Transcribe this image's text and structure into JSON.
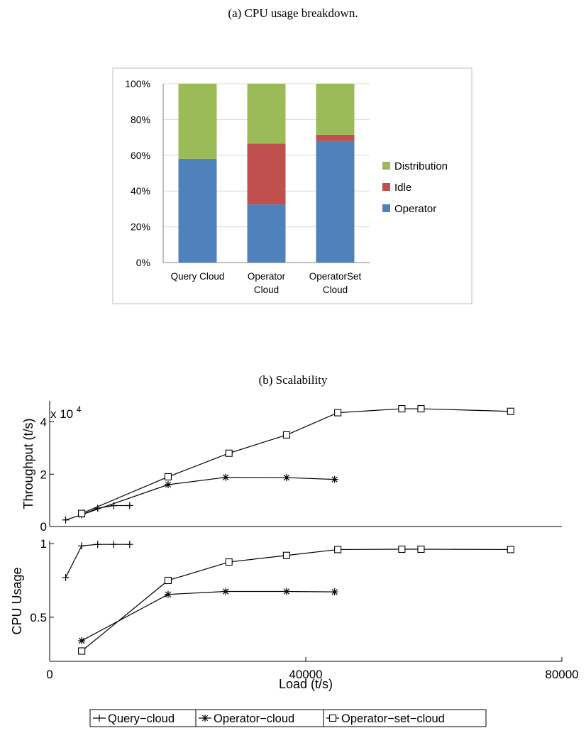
{
  "captions": {
    "a": "(a)  CPU usage breakdown.",
    "b": "(b)  Scalability"
  },
  "chart_data": [
    {
      "type": "bar",
      "stacked": true,
      "categories": [
        [
          "Query Cloud"
        ],
        [
          "Operator",
          "Cloud"
        ],
        [
          "OperatorSet",
          "Cloud"
        ]
      ],
      "series": [
        {
          "name": "Operator",
          "color": "#4f81bd",
          "values": [
            58,
            32.5,
            68
          ]
        },
        {
          "name": "Idle",
          "color": "#c0504d",
          "values": [
            0,
            34,
            3.5
          ]
        },
        {
          "name": "Distribution",
          "color": "#9bbb59",
          "values": [
            42,
            33.5,
            28.5
          ]
        }
      ],
      "yticks": [
        "0%",
        "20%",
        "40%",
        "60%",
        "80%",
        "100%"
      ],
      "ylim": [
        0,
        100
      ],
      "grid": true,
      "legend": "right",
      "legend_order": [
        "Distribution",
        "Idle",
        "Operator"
      ]
    },
    {
      "type": "line",
      "ylabel": "Throughput (t/s)",
      "yticks": [
        "0",
        "2",
        "4"
      ],
      "y_multiplier": "x 10",
      "y_multiplier_exp": "4",
      "ylim": [
        0,
        4.8
      ],
      "xlim": [
        0,
        80000
      ],
      "series": [
        {
          "name": "Query−cloud",
          "marker": "plus",
          "x": [
            2500,
            5000,
            7500,
            10000,
            12500
          ],
          "y": [
            0.25,
            0.45,
            0.7,
            0.8,
            0.8
          ]
        },
        {
          "name": "Operator−cloud",
          "marker": "star",
          "x": [
            5000,
            18500,
            27500,
            37000,
            44500
          ],
          "y": [
            0.45,
            1.6,
            1.88,
            1.87,
            1.8
          ]
        },
        {
          "name": "Operator−set−cloud",
          "marker": "square",
          "x": [
            5000,
            18500,
            28000,
            37000,
            45000,
            55000,
            58000,
            72000
          ],
          "y": [
            0.5,
            1.9,
            2.8,
            3.5,
            4.35,
            4.5,
            4.5,
            4.4
          ]
        }
      ]
    },
    {
      "type": "line",
      "xlabel": "Load (t/s)",
      "ylabel": "CPU Usage",
      "xticks": [
        "0",
        "40000",
        "80000"
      ],
      "xlim": [
        0,
        80000
      ],
      "yticks": [
        "0.5",
        "1"
      ],
      "ylim": [
        0.2,
        1.02
      ],
      "series": [
        {
          "name": "Query−cloud",
          "marker": "plus",
          "x": [
            2500,
            5000,
            7500,
            10000,
            12500
          ],
          "y": [
            0.77,
            0.985,
            0.995,
            0.995,
            0.995
          ]
        },
        {
          "name": "Operator−cloud",
          "marker": "star",
          "x": [
            5000,
            18500,
            27500,
            37000,
            44500
          ],
          "y": [
            0.34,
            0.655,
            0.675,
            0.675,
            0.672
          ]
        },
        {
          "name": "Operator−set−cloud",
          "marker": "square",
          "x": [
            5000,
            18500,
            28000,
            37000,
            45000,
            55000,
            58000,
            72000
          ],
          "y": [
            0.27,
            0.75,
            0.875,
            0.92,
            0.96,
            0.962,
            0.962,
            0.96
          ]
        }
      ]
    }
  ],
  "legend_b": [
    "Query−cloud",
    "Operator−cloud",
    "Operator−set−cloud"
  ]
}
